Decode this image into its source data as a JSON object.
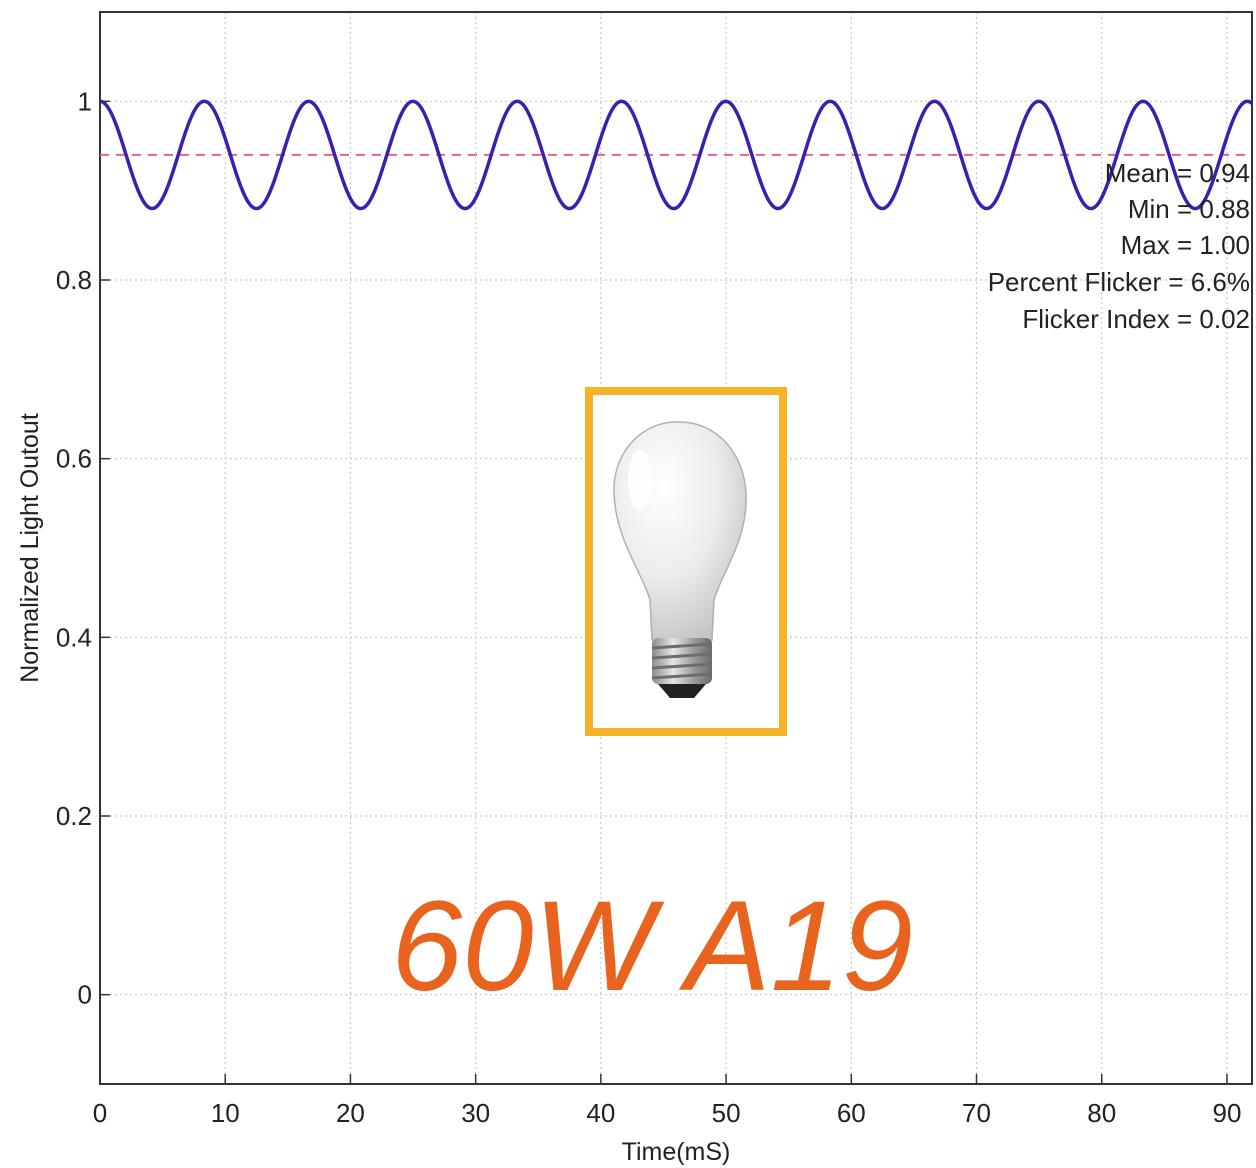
{
  "chart_data": {
    "type": "line",
    "title": "",
    "xlabel": "Time(mS)",
    "ylabel": "Normalized Light Outout",
    "xlim": [
      0,
      92
    ],
    "ylim": [
      -0.1,
      1.1
    ],
    "x_ticks": [
      0,
      10,
      20,
      30,
      40,
      50,
      60,
      70,
      80,
      90
    ],
    "y_ticks": [
      0,
      0.2,
      0.4,
      0.6,
      0.8,
      1
    ],
    "x_tick_labels": [
      "0",
      "10",
      "20",
      "30",
      "40",
      "50",
      "60",
      "70",
      "80",
      "90"
    ],
    "y_tick_labels": [
      "0",
      "0.2",
      "0.4",
      "0.6",
      "0.8",
      "1"
    ],
    "grid": true,
    "series": [
      {
        "style": "solid",
        "color": "#3a1fb0",
        "waveform": "sinusoid",
        "max": 1.0,
        "min": 0.88,
        "period_ms": 8.33,
        "peak_at_ms": 0
      },
      {
        "style": "dashed",
        "color": "#d9669a",
        "constant": 0.94
      }
    ],
    "annotations": [
      "Mean = 0.94",
      "Min = 0.88",
      "Max = 1.00",
      "Percent Flicker = 6.6%",
      "Flicker Index = 0.02"
    ],
    "overlay_text": "60W A19",
    "overlay_text_color": "#e8641e",
    "image_frame_color": "#f5b427",
    "image_icon": "incandescent-bulb-icon"
  }
}
